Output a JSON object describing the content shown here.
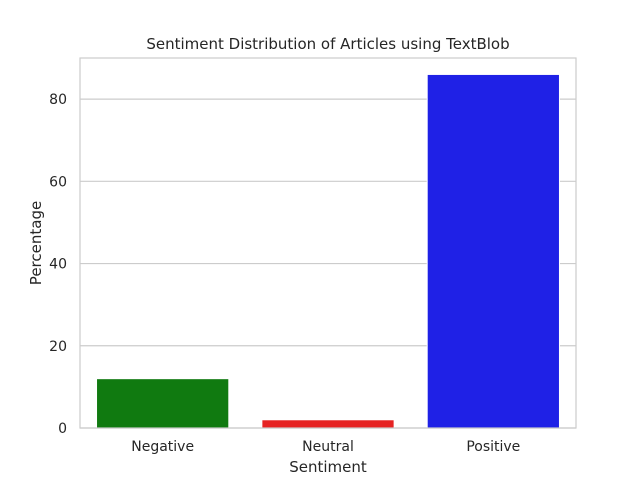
{
  "chart_data": {
    "type": "bar",
    "title": "Sentiment Distribution of Articles using TextBlob",
    "xlabel": "Sentiment",
    "ylabel": "Percentage",
    "categories": [
      "Negative",
      "Neutral",
      "Positive"
    ],
    "values": [
      12.0,
      2.0,
      86.0
    ],
    "colors": [
      "#107a10",
      "#e62323",
      "#1f21e6"
    ],
    "ylim": [
      0,
      90
    ],
    "yticks": [
      0,
      20,
      40,
      60,
      80
    ],
    "grid": "horizontal",
    "legend": "none",
    "style": {
      "background": "#ffffff",
      "grid_color": "#cccccc",
      "text_color": "#262626"
    }
  }
}
